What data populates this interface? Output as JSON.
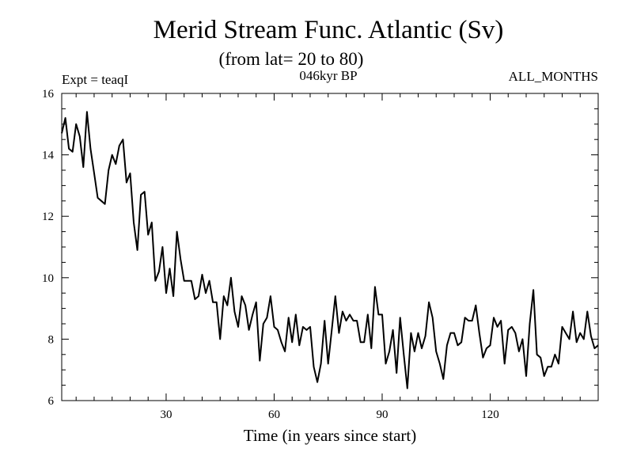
{
  "chart_data": {
    "type": "line",
    "title": "Merid Stream Func. Atlantic (Sv)",
    "subtitle": "(from lat= 20 to 80)",
    "experiment": "Expt = teaqI",
    "period": "046kyr BP",
    "months": "ALL_MONTHS",
    "xlabel": "Time (in years since start)",
    "ylabel": "",
    "xlim": [
      1,
      150
    ],
    "ylim": [
      6,
      16
    ],
    "xticks": [
      30,
      60,
      90,
      120
    ],
    "yticks": [
      6,
      8,
      10,
      12,
      14,
      16
    ],
    "series": [
      {
        "name": "Merid Stream Func. Atlantic",
        "x": [
          1,
          2,
          3,
          4,
          5,
          6,
          7,
          8,
          9,
          10,
          11,
          12,
          13,
          14,
          15,
          16,
          17,
          18,
          19,
          20,
          21,
          22,
          23,
          24,
          25,
          26,
          27,
          28,
          29,
          30,
          31,
          32,
          33,
          34,
          35,
          36,
          37,
          38,
          39,
          40,
          41,
          42,
          43,
          44,
          45,
          46,
          47,
          48,
          49,
          50,
          51,
          52,
          53,
          54,
          55,
          56,
          57,
          58,
          59,
          60,
          61,
          62,
          63,
          64,
          65,
          66,
          67,
          68,
          69,
          70,
          71,
          72,
          73,
          74,
          75,
          76,
          77,
          78,
          79,
          80,
          81,
          82,
          83,
          84,
          85,
          86,
          87,
          88,
          89,
          90,
          91,
          92,
          93,
          94,
          95,
          96,
          97,
          98,
          99,
          100,
          101,
          102,
          103,
          104,
          105,
          106,
          107,
          108,
          109,
          110,
          111,
          112,
          113,
          114,
          115,
          116,
          117,
          118,
          119,
          120,
          121,
          122,
          123,
          124,
          125,
          126,
          127,
          128,
          129,
          130,
          131,
          132,
          133,
          134,
          135,
          136,
          137,
          138,
          139,
          140,
          141,
          142,
          143,
          144,
          145,
          146,
          147,
          148,
          149,
          150
        ],
        "values": [
          14.7,
          15.2,
          14.2,
          14.1,
          15.0,
          14.6,
          13.6,
          15.4,
          14.2,
          13.4,
          12.6,
          12.5,
          12.4,
          13.5,
          14.0,
          13.7,
          14.3,
          14.5,
          13.1,
          13.4,
          11.8,
          10.9,
          12.7,
          12.8,
          11.4,
          11.8,
          9.9,
          10.2,
          11.0,
          9.5,
          10.3,
          9.4,
          11.5,
          10.6,
          9.9,
          9.9,
          9.9,
          9.3,
          9.4,
          10.1,
          9.5,
          9.9,
          9.2,
          9.2,
          8.0,
          9.4,
          9.1,
          10.0,
          8.9,
          8.4,
          9.4,
          9.1,
          8.3,
          8.8,
          9.2,
          7.3,
          8.5,
          8.7,
          9.4,
          8.4,
          8.3,
          7.9,
          7.6,
          8.7,
          7.9,
          8.8,
          7.8,
          8.4,
          8.3,
          8.4,
          7.1,
          6.6,
          7.2,
          8.6,
          7.2,
          8.3,
          9.4,
          8.2,
          8.9,
          8.6,
          8.8,
          8.6,
          8.6,
          7.9,
          7.9,
          8.8,
          7.7,
          9.7,
          8.8,
          8.8,
          7.2,
          7.6,
          8.3,
          6.9,
          8.7,
          7.5,
          6.4,
          8.2,
          7.6,
          8.2,
          7.7,
          8.1,
          9.2,
          8.7,
          7.6,
          7.2,
          6.7,
          7.8,
          8.2,
          8.2,
          7.8,
          7.9,
          8.7,
          8.6,
          8.6,
          9.1,
          8.2,
          7.4,
          7.7,
          7.8,
          8.7,
          8.4,
          8.6,
          7.2,
          8.3,
          8.4,
          8.2,
          7.6,
          8.0,
          6.8,
          8.5,
          9.6,
          7.5,
          7.4,
          6.8,
          7.1,
          7.1,
          7.5,
          7.2,
          8.4,
          8.2,
          8.0,
          8.9,
          7.9,
          8.2,
          8.0,
          8.9,
          8.1,
          7.7,
          7.8
        ]
      }
    ]
  }
}
